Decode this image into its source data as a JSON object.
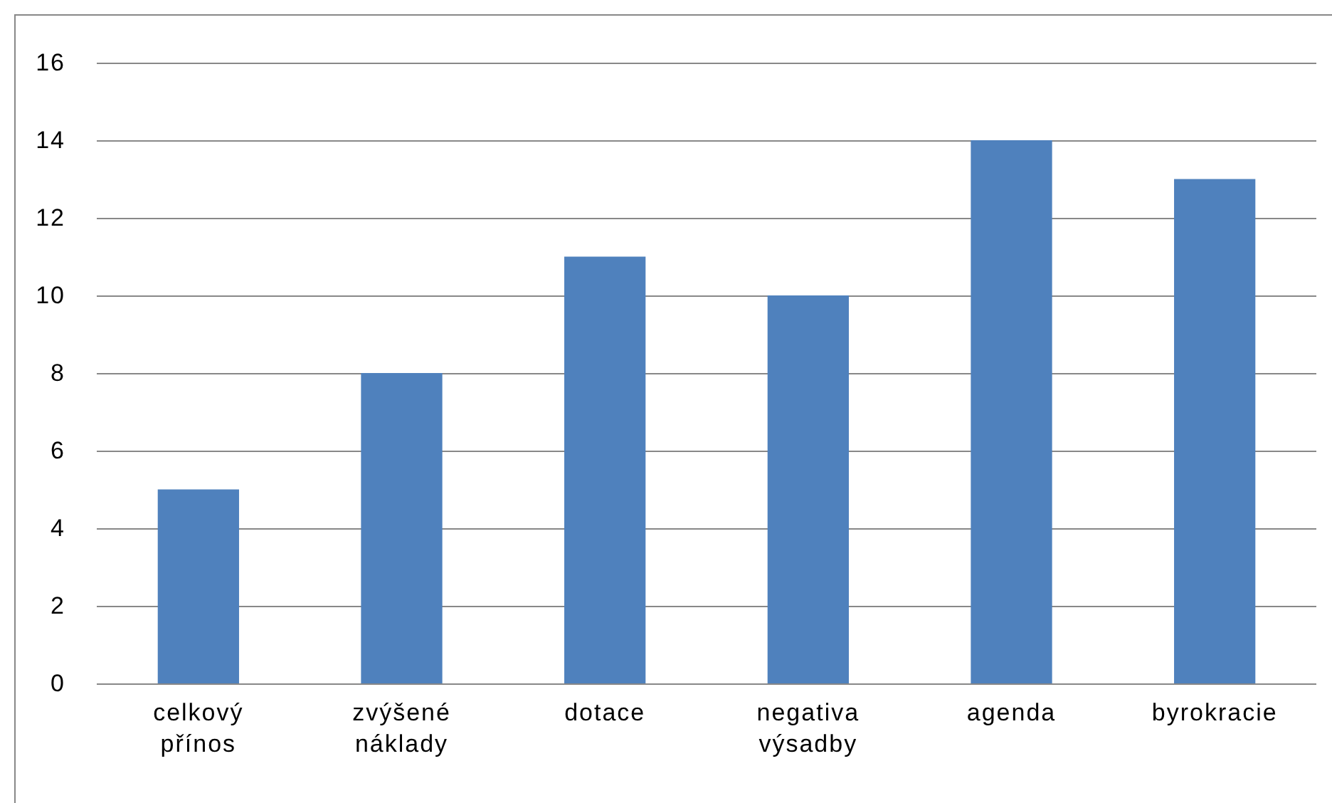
{
  "chart_data": {
    "type": "bar",
    "categories": [
      "celkový přínos",
      "zvýšené náklady",
      "dotace",
      "negativa výsadby",
      "agenda",
      "byrokracie"
    ],
    "values": [
      5,
      8,
      11,
      10,
      14,
      13
    ],
    "color": "#4f81bd",
    "ylim": [
      0,
      16
    ],
    "yticks": [
      0,
      2,
      4,
      6,
      8,
      10,
      12,
      14,
      16
    ],
    "grid": "y"
  }
}
